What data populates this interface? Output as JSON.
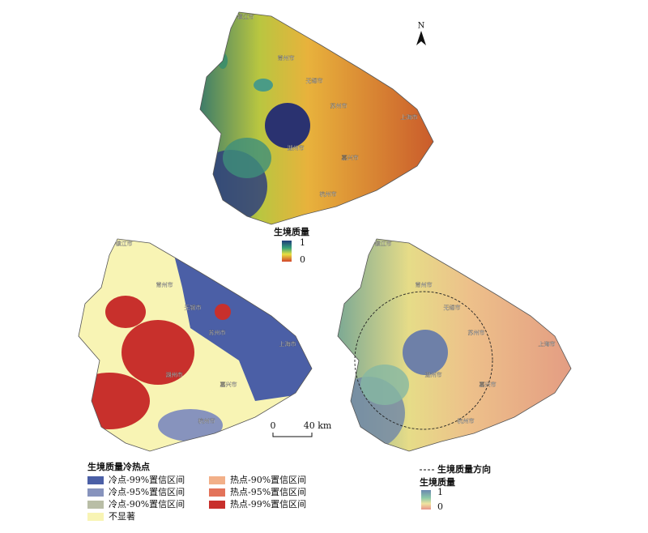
{
  "maps": [
    {
      "cities": [
        "镇江市",
        "常州市",
        "无锡市",
        "苏州市",
        "上海市",
        "湖州市",
        "嘉兴市",
        "杭州市"
      ]
    },
    {
      "cities": [
        "镇江市",
        "常州市",
        "无锡市",
        "苏州市",
        "上海市",
        "湖州市",
        "嘉兴市",
        "杭州市"
      ]
    },
    {
      "cities": [
        "镇江市",
        "常州市",
        "无锡市",
        "苏州市",
        "上海市",
        "湖州市",
        "嘉兴市",
        "杭州市"
      ]
    }
  ],
  "north_arrow": "N",
  "top_legend": {
    "title": "生境质量",
    "max": "1",
    "min": "0"
  },
  "scale_bar": {
    "start": "0",
    "end": "40 km"
  },
  "hotspot_legend": {
    "title": "生境质量冷热点",
    "items": [
      {
        "label": "冷点-99%置信区间",
        "color": "#4b5fa6"
      },
      {
        "label": "冷点-95%置信区间",
        "color": "#8793bd"
      },
      {
        "label": "冷点-90%置信区间",
        "color": "#b9bea6"
      },
      {
        "label": "不显著",
        "color": "#f8f4b4"
      },
      {
        "label": "热点-90%置信区间",
        "color": "#f2b089"
      },
      {
        "label": "热点-95%置信区间",
        "color": "#e3735a"
      },
      {
        "label": "热点-99%置信区间",
        "color": "#c8302c"
      }
    ]
  },
  "direction_legend": {
    "line_label": "生境质量方向",
    "title": "生境质量",
    "max": "1",
    "min": "0"
  }
}
